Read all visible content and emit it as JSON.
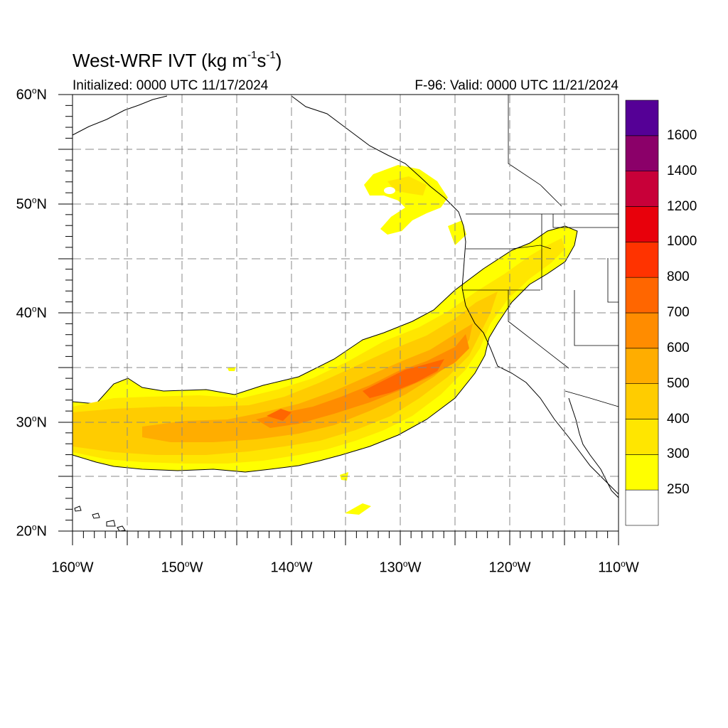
{
  "title": {
    "main": "West-WRF IVT (kg m",
    "exp1": "-1",
    "mid": "s",
    "exp2": "-1",
    "end": ")"
  },
  "subtitle": {
    "initialized": "Initialized: 0000 UTC 11/17/2024",
    "valid": "F-96: Valid: 0000 UTC 11/21/2024"
  },
  "map": {
    "lon_range": [
      -160,
      -110
    ],
    "lat_range": [
      20,
      60
    ],
    "grid": "dashed",
    "lat_labels": [
      "60",
      "50",
      "40",
      "30",
      "20"
    ],
    "lat_suffix": "N",
    "lon_labels": [
      "160",
      "150",
      "140",
      "130",
      "120",
      "110"
    ],
    "lon_suffix": "W",
    "degree_symbol": "o"
  },
  "colorbar": {
    "labels": [
      "1600",
      "1400",
      "1200",
      "1000",
      "800",
      "700",
      "600",
      "500",
      "400",
      "300",
      "250"
    ],
    "colors": [
      "#ffffff",
      "#ffff00",
      "#ffe600",
      "#ffcc00",
      "#ffad00",
      "#ff8c00",
      "#ff6600",
      "#ff3300",
      "#e8000b",
      "#c80039",
      "#8b0069",
      "#550096"
    ]
  },
  "field_colors": {
    "outline": "#000000",
    "c250": "#ffff00",
    "c300": "#ffe600",
    "c400": "#ffcc00",
    "c500": "#ffad00",
    "c600": "#ff8c00",
    "c700": "#ff6600"
  }
}
